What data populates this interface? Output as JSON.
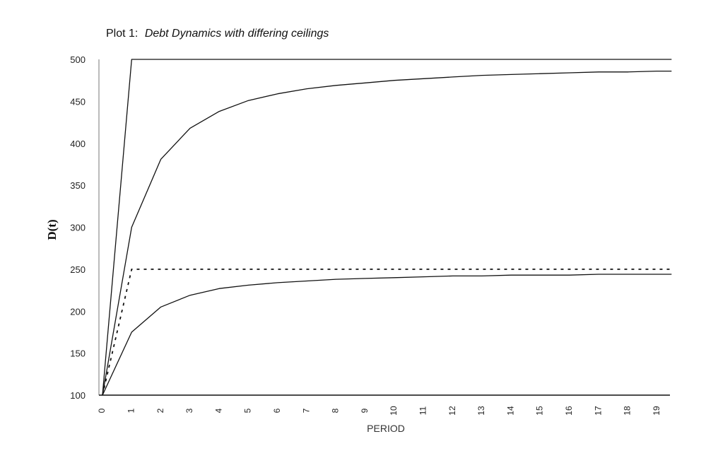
{
  "chart_data": {
    "type": "line",
    "title": "Plot 1:",
    "subtitle": "Debt Dynamics with differing ceilings",
    "xlabel": "PERIOD",
    "ylabel": "D(t)",
    "xlim": [
      0,
      19.5
    ],
    "ylim": [
      100,
      500
    ],
    "x_ticks": [
      0,
      1,
      2,
      3,
      4,
      5,
      6,
      7,
      8,
      9,
      10,
      11,
      12,
      13,
      14,
      15,
      16,
      17,
      18,
      19
    ],
    "y_ticks": [
      100,
      150,
      200,
      250,
      300,
      350,
      400,
      450,
      500
    ],
    "grid": false,
    "legend": "none",
    "series": [
      {
        "style": "solid",
        "x": [
          0,
          1,
          2,
          3,
          4,
          5,
          6,
          7,
          8,
          9,
          10,
          11,
          12,
          13,
          14,
          15,
          16,
          17,
          18,
          19,
          19.5
        ],
        "values": [
          100,
          500,
          500,
          500,
          500,
          500,
          500,
          500,
          500,
          500,
          500,
          500,
          500,
          500,
          500,
          500,
          500,
          500,
          500,
          500,
          500
        ]
      },
      {
        "style": "solid",
        "x": [
          0,
          1,
          2,
          3,
          4,
          5,
          6,
          7,
          8,
          9,
          10,
          11,
          12,
          13,
          14,
          15,
          16,
          17,
          18,
          19,
          19.5
        ],
        "values": [
          100,
          300,
          381,
          418,
          438,
          451,
          459,
          465,
          469,
          472,
          475,
          477,
          479,
          481,
          482,
          483,
          484,
          485,
          485,
          486,
          486
        ]
      },
      {
        "style": "dashed",
        "x": [
          0,
          1,
          2,
          3,
          4,
          5,
          6,
          7,
          8,
          9,
          10,
          11,
          12,
          13,
          14,
          15,
          16,
          17,
          18,
          19,
          19.5
        ],
        "values": [
          100,
          250,
          250,
          250,
          250,
          250,
          250,
          250,
          250,
          250,
          250,
          250,
          250,
          250,
          250,
          250,
          250,
          250,
          250,
          250,
          250
        ]
      },
      {
        "style": "solid",
        "x": [
          0,
          1,
          2,
          3,
          4,
          5,
          6,
          7,
          8,
          9,
          10,
          11,
          12,
          13,
          14,
          15,
          16,
          17,
          18,
          19,
          19.5
        ],
        "values": [
          100,
          175,
          205,
          219,
          227,
          231,
          234,
          236,
          238,
          239,
          240,
          241,
          242,
          242,
          243,
          243,
          243,
          244,
          244,
          244,
          244
        ]
      }
    ]
  }
}
